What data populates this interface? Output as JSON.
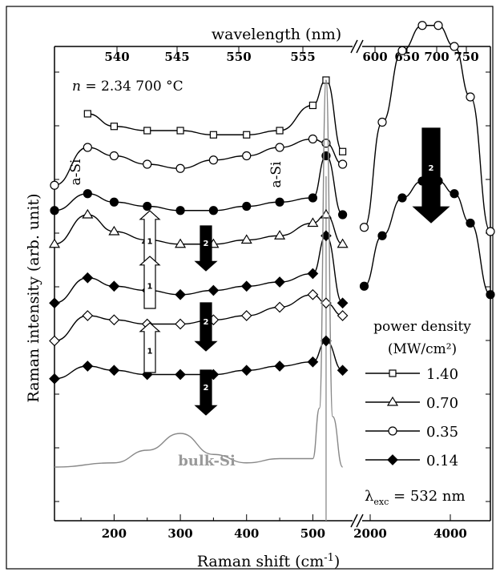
{
  "chart_data": {
    "type": "line",
    "title": "",
    "xlabel_bottom": "Raman shift (cm",
    "xlabel_bottom_sup": "-1",
    "xlabel_bottom_close": ")",
    "xlabel_top": "wavelength (nm)",
    "ylabel": "Raman intensity (arb. unit)",
    "condition_n": "n",
    "condition_rest": " = 2.34  700 °C",
    "bottom_ticks_left": [
      "200",
      "300",
      "400",
      "500"
    ],
    "bottom_ticks_right": [
      "2000",
      "4000"
    ],
    "top_ticks_left": [
      "540",
      "545",
      "550",
      "555"
    ],
    "top_ticks_right": [
      "600",
      "650",
      "700",
      "750"
    ],
    "xlim_left": [
      110,
      560
    ],
    "xlim_right": [
      1800,
      5000
    ],
    "peak_labels": [
      "a-Si",
      "a-Si"
    ],
    "bulk_label": "bulk-Si",
    "reference_line_x": 520,
    "arrow_up_label": "1",
    "arrow_down_label": "2",
    "legend": {
      "title_line1": "power density",
      "title_line2": "(MW/cm²)",
      "entries": [
        {
          "label": "1.40",
          "marker": "square"
        },
        {
          "label": "0.70",
          "marker": "triangle"
        },
        {
          "label": "0.35",
          "marker": "circle"
        },
        {
          "label": "0.14",
          "marker": "diamond"
        }
      ]
    },
    "lambda_symbol": "λ",
    "lambda_sub": "exc",
    "lambda_value": " = 532 nm",
    "series": [
      {
        "marker": "square",
        "x": [
          160,
          200,
          250,
          300,
          350,
          400,
          450,
          500,
          520,
          545
        ],
        "y": [
          0.92,
          0.89,
          0.88,
          0.88,
          0.87,
          0.87,
          0.88,
          0.94,
          1.0,
          0.83
        ]
      },
      {
        "marker": "circle",
        "x": [
          110,
          160,
          200,
          250,
          300,
          350,
          400,
          450,
          500,
          520,
          545
        ],
        "y": [
          0.75,
          0.84,
          0.82,
          0.8,
          0.79,
          0.81,
          0.82,
          0.84,
          0.86,
          0.85,
          0.8
        ]
      },
      {
        "marker": "filled-circle",
        "x": [
          110,
          160,
          200,
          250,
          300,
          350,
          400,
          450,
          500,
          520,
          545
        ],
        "y": [
          0.69,
          0.73,
          0.71,
          0.7,
          0.69,
          0.69,
          0.7,
          0.71,
          0.72,
          0.82,
          0.68
        ]
      },
      {
        "marker": "triangle",
        "x": [
          110,
          160,
          200,
          250,
          300,
          350,
          400,
          450,
          500,
          520,
          545
        ],
        "y": [
          0.61,
          0.68,
          0.64,
          0.62,
          0.61,
          0.61,
          0.62,
          0.63,
          0.66,
          0.68,
          0.61
        ]
      },
      {
        "marker": "filled-diamond",
        "x": [
          110,
          160,
          200,
          250,
          300,
          350,
          400,
          450,
          500,
          520,
          545
        ],
        "y": [
          0.47,
          0.53,
          0.51,
          0.5,
          0.49,
          0.5,
          0.51,
          0.52,
          0.54,
          0.63,
          0.47
        ]
      },
      {
        "marker": "diamond",
        "x": [
          110,
          160,
          200,
          250,
          300,
          350,
          400,
          450,
          500,
          520,
          545
        ],
        "y": [
          0.38,
          0.44,
          0.43,
          0.42,
          0.42,
          0.43,
          0.44,
          0.46,
          0.49,
          0.47,
          0.44
        ]
      },
      {
        "marker": "filled-diamond",
        "x": [
          110,
          160,
          200,
          250,
          300,
          350,
          400,
          450,
          500,
          520,
          545
        ],
        "y": [
          0.29,
          0.32,
          0.31,
          0.3,
          0.3,
          0.3,
          0.31,
          0.32,
          0.33,
          0.38,
          0.31
        ]
      },
      {
        "marker": "none",
        "x": [
          110,
          200,
          250,
          300,
          350,
          400,
          450,
          500,
          510,
          520,
          530,
          545
        ],
        "y": [
          0.08,
          0.09,
          0.12,
          0.16,
          0.11,
          0.09,
          0.1,
          0.1,
          0.22,
          1.0,
          0.2,
          0.08
        ]
      }
    ],
    "series_right": [
      {
        "marker": "circle",
        "x": [
          1850,
          2300,
          2800,
          3300,
          3700,
          4100,
          4500,
          5000
        ],
        "y": [
          0.65,
          0.9,
          1.07,
          1.13,
          1.13,
          1.08,
          0.96,
          0.64
        ]
      },
      {
        "marker": "filled-circle",
        "x": [
          1850,
          2300,
          2800,
          3300,
          3700,
          4100,
          4500,
          5000
        ],
        "y": [
          0.51,
          0.63,
          0.72,
          0.76,
          0.76,
          0.73,
          0.66,
          0.49
        ]
      }
    ]
  }
}
